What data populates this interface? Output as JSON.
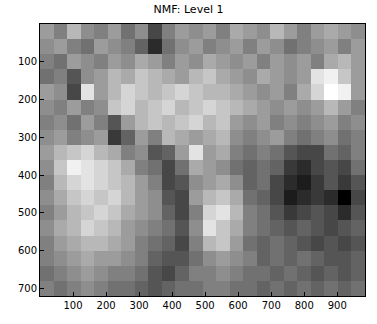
{
  "chart_data": {
    "type": "heatmap",
    "title": "NMF: Level 1",
    "x": [
      20.5,
      61.5,
      102.5,
      143.5,
      184.5,
      225.5,
      266.5,
      307.5,
      348.5,
      389.5,
      430.5,
      471.5,
      512.5,
      553.5,
      594.5,
      635.5,
      676.5,
      717.5,
      758.5,
      799.5,
      840.5,
      881.5,
      922.5,
      963.5
    ],
    "y": [
      20,
      60,
      100,
      140,
      180,
      220,
      260,
      300,
      340,
      380,
      420,
      460,
      500,
      540,
      580,
      620,
      660,
      700
    ],
    "cells": [
      [
        0.6,
        0.5,
        0.7,
        0.55,
        0.5,
        0.6,
        0.45,
        0.55,
        0.3,
        0.5,
        0.6,
        0.55,
        0.6,
        0.5,
        0.65,
        0.6,
        0.55,
        0.7,
        0.6,
        0.5,
        0.6,
        0.65,
        0.6,
        0.55
      ],
      [
        0.55,
        0.6,
        0.5,
        0.45,
        0.6,
        0.55,
        0.5,
        0.4,
        0.2,
        0.45,
        0.55,
        0.6,
        0.5,
        0.55,
        0.6,
        0.5,
        0.6,
        0.55,
        0.45,
        0.5,
        0.55,
        0.6,
        0.5,
        0.6
      ],
      [
        0.5,
        0.45,
        0.6,
        0.55,
        0.5,
        0.6,
        0.55,
        0.65,
        0.6,
        0.5,
        0.6,
        0.55,
        0.65,
        0.6,
        0.55,
        0.6,
        0.5,
        0.6,
        0.55,
        0.6,
        0.5,
        0.65,
        0.7,
        0.6
      ],
      [
        0.45,
        0.5,
        0.35,
        0.55,
        0.6,
        0.7,
        0.65,
        0.75,
        0.7,
        0.65,
        0.6,
        0.7,
        0.75,
        0.65,
        0.6,
        0.55,
        0.65,
        0.6,
        0.55,
        0.6,
        0.85,
        0.9,
        0.75,
        0.6
      ],
      [
        0.6,
        0.55,
        0.3,
        0.85,
        0.6,
        0.7,
        0.8,
        0.75,
        0.7,
        0.75,
        0.8,
        0.75,
        0.7,
        0.7,
        0.65,
        0.6,
        0.55,
        0.6,
        0.5,
        0.65,
        0.8,
        0.95,
        0.9,
        0.6
      ],
      [
        0.55,
        0.5,
        0.6,
        0.5,
        0.55,
        0.75,
        0.8,
        0.7,
        0.75,
        0.8,
        0.7,
        0.75,
        0.8,
        0.75,
        0.7,
        0.65,
        0.6,
        0.55,
        0.6,
        0.55,
        0.6,
        0.7,
        0.6,
        0.5
      ],
      [
        0.5,
        0.55,
        0.45,
        0.6,
        0.5,
        0.35,
        0.6,
        0.7,
        0.75,
        0.7,
        0.75,
        0.8,
        0.7,
        0.75,
        0.6,
        0.55,
        0.6,
        0.5,
        0.55,
        0.5,
        0.55,
        0.6,
        0.5,
        0.55
      ],
      [
        0.55,
        0.6,
        0.5,
        0.55,
        0.6,
        0.25,
        0.4,
        0.6,
        0.5,
        0.7,
        0.65,
        0.6,
        0.65,
        0.7,
        0.55,
        0.5,
        0.55,
        0.6,
        0.5,
        0.45,
        0.5,
        0.55,
        0.45,
        0.5
      ],
      [
        0.6,
        0.7,
        0.75,
        0.8,
        0.7,
        0.65,
        0.5,
        0.55,
        0.35,
        0.4,
        0.6,
        0.85,
        0.6,
        0.65,
        0.5,
        0.45,
        0.5,
        0.45,
        0.35,
        0.3,
        0.3,
        0.45,
        0.4,
        0.5
      ],
      [
        0.55,
        0.75,
        0.9,
        0.85,
        0.8,
        0.75,
        0.65,
        0.5,
        0.45,
        0.3,
        0.45,
        0.65,
        0.6,
        0.55,
        0.45,
        0.4,
        0.45,
        0.4,
        0.25,
        0.2,
        0.3,
        0.35,
        0.3,
        0.45
      ],
      [
        0.5,
        0.7,
        0.8,
        0.85,
        0.8,
        0.75,
        0.7,
        0.6,
        0.5,
        0.3,
        0.35,
        0.55,
        0.6,
        0.65,
        0.55,
        0.4,
        0.45,
        0.3,
        0.2,
        0.15,
        0.25,
        0.35,
        0.25,
        0.35
      ],
      [
        0.55,
        0.65,
        0.75,
        0.8,
        0.75,
        0.8,
        0.7,
        0.6,
        0.55,
        0.35,
        0.3,
        0.6,
        0.7,
        0.75,
        0.65,
        0.45,
        0.4,
        0.3,
        0.15,
        0.2,
        0.25,
        0.2,
        0.05,
        0.3
      ],
      [
        0.5,
        0.6,
        0.7,
        0.75,
        0.8,
        0.75,
        0.65,
        0.6,
        0.55,
        0.4,
        0.3,
        0.5,
        0.8,
        0.85,
        0.7,
        0.5,
        0.45,
        0.35,
        0.25,
        0.3,
        0.35,
        0.3,
        0.2,
        0.35
      ],
      [
        0.55,
        0.65,
        0.7,
        0.8,
        0.75,
        0.7,
        0.6,
        0.55,
        0.5,
        0.45,
        0.35,
        0.55,
        0.85,
        0.75,
        0.65,
        0.5,
        0.45,
        0.4,
        0.35,
        0.4,
        0.35,
        0.3,
        0.35,
        0.4
      ],
      [
        0.5,
        0.6,
        0.65,
        0.7,
        0.7,
        0.65,
        0.6,
        0.5,
        0.45,
        0.4,
        0.3,
        0.5,
        0.7,
        0.75,
        0.6,
        0.45,
        0.4,
        0.45,
        0.4,
        0.35,
        0.3,
        0.35,
        0.3,
        0.35
      ],
      [
        0.5,
        0.55,
        0.6,
        0.65,
        0.6,
        0.6,
        0.55,
        0.5,
        0.4,
        0.35,
        0.35,
        0.45,
        0.55,
        0.6,
        0.55,
        0.5,
        0.4,
        0.45,
        0.4,
        0.45,
        0.4,
        0.35,
        0.35,
        0.4
      ],
      [
        0.45,
        0.5,
        0.55,
        0.6,
        0.55,
        0.5,
        0.5,
        0.45,
        0.35,
        0.3,
        0.4,
        0.5,
        0.5,
        0.55,
        0.5,
        0.45,
        0.45,
        0.4,
        0.45,
        0.4,
        0.35,
        0.4,
        0.35,
        0.4
      ],
      [
        0.5,
        0.45,
        0.5,
        0.55,
        0.5,
        0.45,
        0.45,
        0.4,
        0.35,
        0.4,
        0.45,
        0.45,
        0.5,
        0.5,
        0.45,
        0.45,
        0.4,
        0.45,
        0.4,
        0.45,
        0.4,
        0.45,
        0.4,
        0.45
      ]
    ],
    "xlim": [
      0,
      984
    ],
    "ylim": [
      720,
      0
    ],
    "xticks": [
      100,
      200,
      300,
      400,
      500,
      600,
      700,
      800,
      900
    ],
    "yticks": [
      100,
      200,
      300,
      400,
      500,
      600,
      700
    ]
  }
}
